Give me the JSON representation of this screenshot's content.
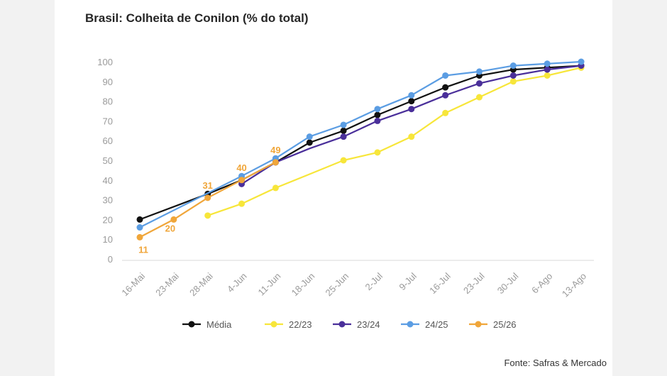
{
  "chart_data": {
    "type": "line",
    "title": "Brasil: Colheita de Conilon (% do total)",
    "source": "Fonte: Safras & Mercado",
    "xlabel": "",
    "ylabel": "",
    "ylim": [
      0,
      100
    ],
    "yticks": [
      0,
      10,
      20,
      30,
      40,
      50,
      60,
      70,
      80,
      90,
      100
    ],
    "categories": [
      "16-Mai",
      "23-Mai",
      "28-Mai",
      "4-Jun",
      "11-Jun",
      "18-Jun",
      "25-Jun",
      "2-Jul",
      "9-Jul",
      "16-Jul",
      "23-Jul",
      "30-Jul",
      "6-Ago",
      "13-Ago"
    ],
    "legend_position": "bottom",
    "grid": false,
    "series": [
      {
        "name": "Média",
        "color": "#111111",
        "markers": [
          0,
          2,
          3,
          4,
          5,
          6,
          7,
          8,
          9,
          10,
          11,
          12,
          13
        ],
        "values": [
          20,
          null,
          33,
          40,
          49,
          59,
          65,
          73,
          80,
          87,
          93,
          96,
          97,
          98
        ]
      },
      {
        "name": "22/23",
        "color": "#f7e63a",
        "markers": [
          2,
          3,
          4,
          6,
          7,
          8,
          9,
          10,
          11,
          12,
          13
        ],
        "values": [
          null,
          null,
          22,
          28,
          36,
          43,
          50,
          54,
          62,
          74,
          82,
          90,
          93,
          97
        ]
      },
      {
        "name": "23/24",
        "color": "#4a2f9a",
        "markers": [
          3,
          4,
          6,
          7,
          8,
          9,
          10,
          11,
          12,
          13
        ],
        "values": [
          null,
          null,
          null,
          38,
          49,
          56,
          62,
          70,
          76,
          83,
          89,
          93,
          96,
          98
        ]
      },
      {
        "name": "24/25",
        "color": "#5b9de3",
        "markers": [
          0,
          3,
          4,
          5,
          6,
          7,
          8,
          9,
          10,
          11,
          12,
          13
        ],
        "values": [
          16,
          null,
          null,
          42,
          51,
          62,
          68,
          76,
          83,
          93,
          95,
          98,
          99,
          100
        ]
      },
      {
        "name": "25/26",
        "color": "#f0a63a",
        "markers": [
          0,
          1,
          2,
          3,
          4
        ],
        "values": [
          11,
          20,
          31,
          40,
          49,
          null,
          null,
          null,
          null,
          null,
          null,
          null,
          null,
          null
        ]
      }
    ],
    "data_labels": [
      {
        "series": "25/26",
        "category": "16-Mai",
        "text": "11"
      },
      {
        "series": "25/26",
        "category": "23-Mai",
        "text": "20"
      },
      {
        "series": "25/26",
        "category": "28-Mai",
        "text": "31"
      },
      {
        "series": "25/26",
        "category": "4-Jun",
        "text": "40"
      },
      {
        "series": "25/26",
        "category": "11-Jun",
        "text": "49"
      }
    ]
  }
}
